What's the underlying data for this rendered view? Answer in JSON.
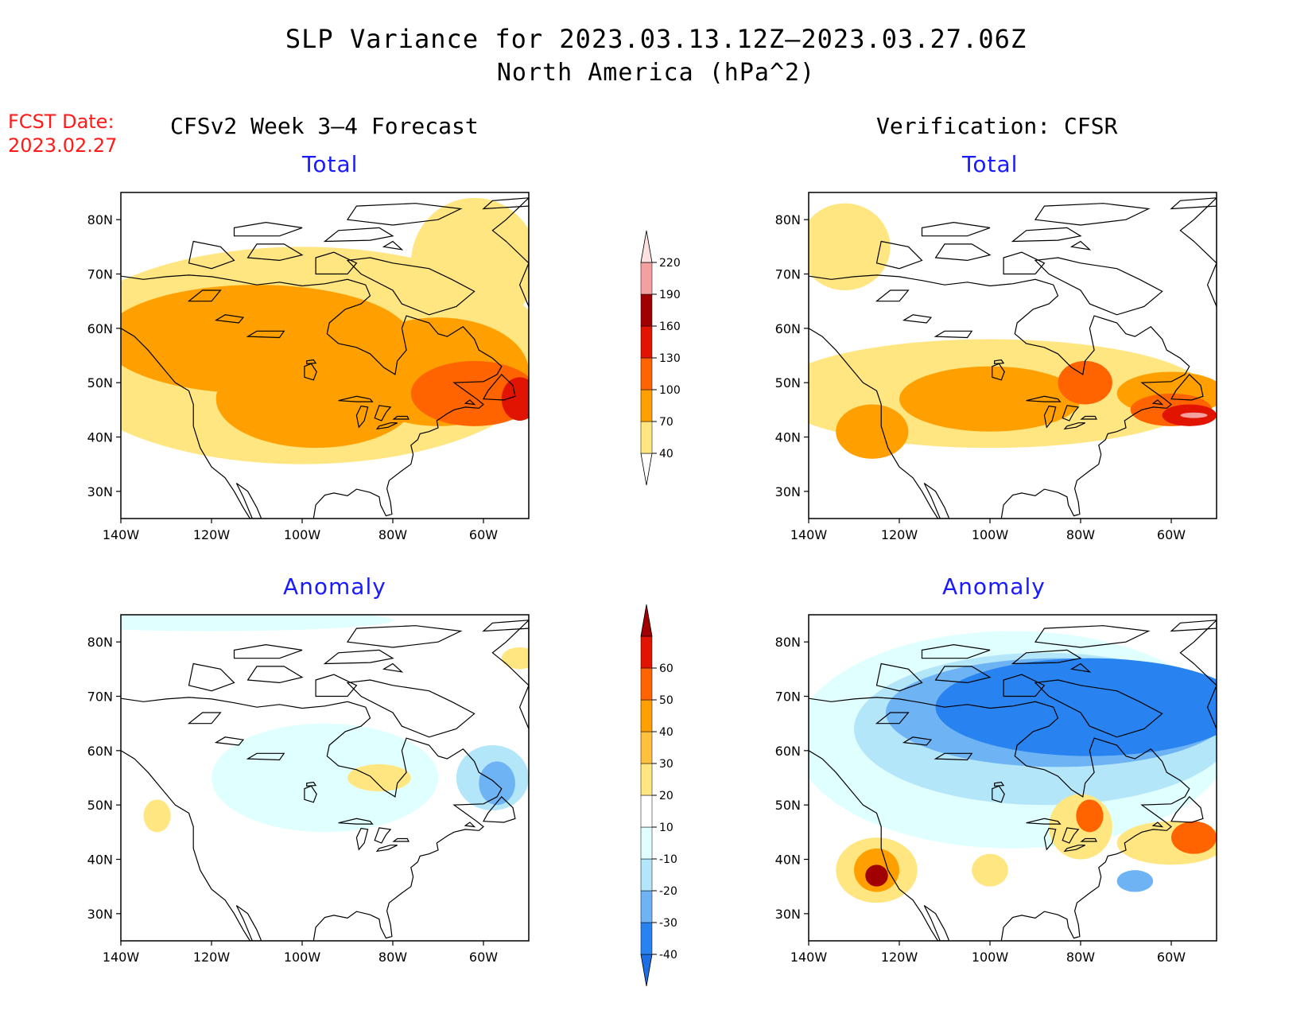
{
  "title": "SLP Variance for 2023.03.13.12Z—2023.03.27.06Z",
  "subtitle": "North America (hPa^2)",
  "fcst_date_label": "FCST Date:",
  "fcst_date_value": "2023.02.27",
  "left_column_title": "CFSv2 Week 3—4 Forecast",
  "right_column_title": "Verification: CFSR",
  "panels": [
    {
      "id": "fcst-total",
      "title": "Total"
    },
    {
      "id": "verif-total",
      "title": "Total"
    },
    {
      "id": "fcst-anomaly",
      "title": "Anomaly"
    },
    {
      "id": "verif-anomaly",
      "title": "Anomaly"
    }
  ],
  "map_axes": {
    "lon_range": [
      -140,
      -50
    ],
    "lat_range": [
      25,
      85
    ],
    "x_ticks": [
      -140,
      -120,
      -100,
      -80,
      -60
    ],
    "x_tick_labels": [
      "140W",
      "120W",
      "100W",
      "80W",
      "60W"
    ],
    "y_ticks": [
      30,
      40,
      50,
      60,
      70,
      80
    ],
    "y_tick_labels": [
      "30N",
      "40N",
      "50N",
      "60N",
      "70N",
      "80N"
    ]
  },
  "colorbar_total": {
    "levels": [
      "40",
      "70",
      "100",
      "130",
      "160",
      "190",
      "220"
    ],
    "colors": [
      "#ffffff",
      "#ffe680",
      "#ffa000",
      "#ff6400",
      "#e01400",
      "#a00000",
      "#f4a0a0",
      "#fde0e0"
    ]
  },
  "colorbar_anomaly": {
    "levels": [
      "-40",
      "-30",
      "-20",
      "-10",
      "10",
      "20",
      "30",
      "40",
      "50",
      "60"
    ],
    "colors": [
      "#1e6ee6",
      "#2882f0",
      "#6eb4f5",
      "#b4e6fa",
      "#e0ffff",
      "#ffffff",
      "#ffe680",
      "#ffc040",
      "#ffa000",
      "#ff6400",
      "#e01400",
      "#a00000"
    ]
  },
  "map_fields": {
    "fcst_total": [
      {
        "level": 1,
        "lon": -100,
        "lat": 55,
        "rx": 55,
        "ry": 20
      },
      {
        "level": 1,
        "lon": -62,
        "lat": 72,
        "rx": 14,
        "ry": 12
      },
      {
        "level": 2,
        "lon": -110,
        "lat": 58,
        "rx": 34,
        "ry": 10
      },
      {
        "level": 2,
        "lon": -97,
        "lat": 47,
        "rx": 22,
        "ry": 9
      },
      {
        "level": 2,
        "lon": -70,
        "lat": 52,
        "rx": 20,
        "ry": 10
      },
      {
        "level": 3,
        "lon": -62,
        "lat": 48,
        "rx": 14,
        "ry": 6
      },
      {
        "level": 4,
        "lon": -52,
        "lat": 47,
        "rx": 4,
        "ry": 4
      }
    ],
    "verif_total": [
      {
        "level": 1,
        "lon": -100,
        "lat": 48,
        "rx": 48,
        "ry": 10
      },
      {
        "level": 1,
        "lon": -132,
        "lat": 75,
        "rx": 10,
        "ry": 8
      },
      {
        "level": 2,
        "lon": -100,
        "lat": 47,
        "rx": 20,
        "ry": 6
      },
      {
        "level": 2,
        "lon": -126,
        "lat": 41,
        "rx": 8,
        "ry": 5
      },
      {
        "level": 2,
        "lon": -60,
        "lat": 48,
        "rx": 12,
        "ry": 4
      },
      {
        "level": 3,
        "lon": -79,
        "lat": 50,
        "rx": 6,
        "ry": 4
      },
      {
        "level": 3,
        "lon": -60,
        "lat": 45,
        "rx": 9,
        "ry": 3
      },
      {
        "level": 4,
        "lon": -56,
        "lat": 44,
        "rx": 6,
        "ry": 2
      },
      {
        "level": 6,
        "lon": -55,
        "lat": 44,
        "rx": 3,
        "ry": 0.5
      }
    ],
    "fcst_anomaly": [
      {
        "level": 4,
        "lon": -95,
        "lat": 55,
        "rx": 25,
        "ry": 10
      },
      {
        "level": 4,
        "lon": -120,
        "lat": 84,
        "rx": 40,
        "ry": 2
      },
      {
        "level": 3,
        "lon": -58,
        "lat": 55,
        "rx": 8,
        "ry": 6
      },
      {
        "level": 2,
        "lon": -57,
        "lat": 54,
        "rx": 4,
        "ry": 4
      },
      {
        "level": 6,
        "lon": -83,
        "lat": 55,
        "rx": 7,
        "ry": 2.5
      },
      {
        "level": 6,
        "lon": -132,
        "lat": 48,
        "rx": 3,
        "ry": 3
      },
      {
        "level": 6,
        "lon": -52,
        "lat": 77,
        "rx": 4,
        "ry": 2
      }
    ],
    "verif_anomaly": [
      {
        "level": 4,
        "lon": -95,
        "lat": 62,
        "rx": 48,
        "ry": 20
      },
      {
        "level": 3,
        "lon": -88,
        "lat": 64,
        "rx": 42,
        "ry": 14
      },
      {
        "level": 2,
        "lon": -85,
        "lat": 67,
        "rx": 38,
        "ry": 10
      },
      {
        "level": 1,
        "lon": -78,
        "lat": 68,
        "rx": 34,
        "ry": 9
      },
      {
        "level": 6,
        "lon": -125,
        "lat": 38,
        "rx": 9,
        "ry": 6
      },
      {
        "level": 8,
        "lon": -125,
        "lat": 38,
        "rx": 5,
        "ry": 4
      },
      {
        "level": 11,
        "lon": -125,
        "lat": 37,
        "rx": 2.5,
        "ry": 2
      },
      {
        "level": 6,
        "lon": -80,
        "lat": 46,
        "rx": 7,
        "ry": 6
      },
      {
        "level": 9,
        "lon": -78,
        "lat": 48,
        "rx": 3,
        "ry": 3
      },
      {
        "level": 6,
        "lon": -60,
        "lat": 43,
        "rx": 12,
        "ry": 4
      },
      {
        "level": 9,
        "lon": -55,
        "lat": 44,
        "rx": 5,
        "ry": 3
      },
      {
        "level": 6,
        "lon": -100,
        "lat": 38,
        "rx": 4,
        "ry": 3
      },
      {
        "level": 2,
        "lon": -68,
        "lat": 36,
        "rx": 4,
        "ry": 2
      }
    ]
  }
}
